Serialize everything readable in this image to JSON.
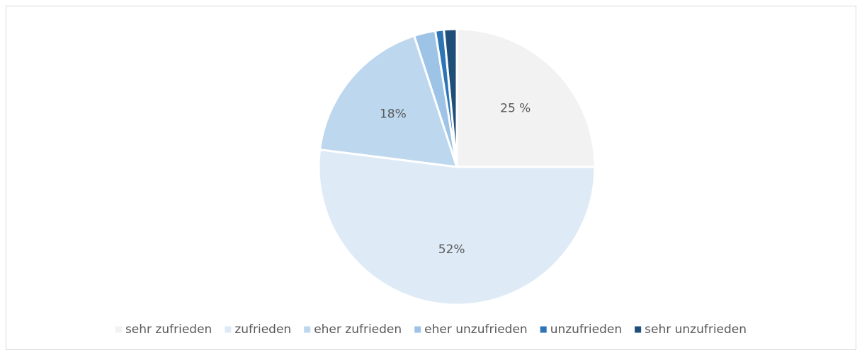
{
  "chart_data": {
    "type": "pie",
    "categories": [
      "sehr zufrieden",
      "zufrieden",
      "eher zufrieden",
      "eher unzufrieden",
      "unzufrieden",
      "sehr unzufrieden"
    ],
    "values": [
      25,
      52,
      18,
      2.5,
      1,
      1.5
    ],
    "value_labels": [
      "25 %",
      "52%",
      "18%",
      null,
      null,
      null
    ],
    "colors": [
      "#f2f2f2",
      "#deebf7",
      "#bdd7ee",
      "#9dc3e6",
      "#2e75b6",
      "#1f4e79"
    ],
    "legend": "bottom"
  }
}
